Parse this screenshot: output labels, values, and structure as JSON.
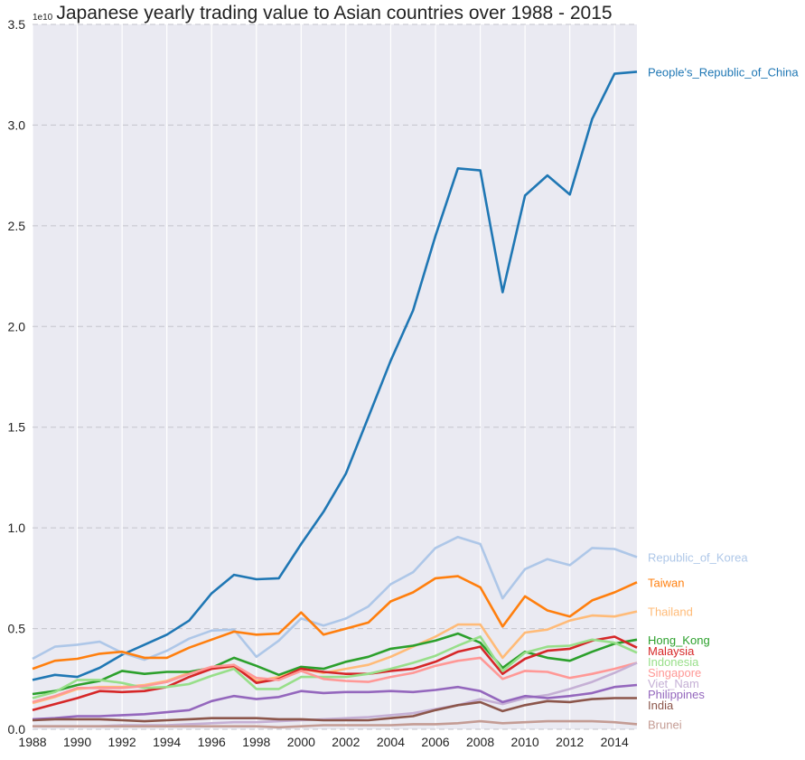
{
  "chart_data": {
    "type": "line",
    "title": "Japanese yearly trading value to Asian countries over 1988 - 2015",
    "xlabel": "",
    "ylabel": "",
    "y_offset_label": "1e10",
    "y_unit": 10000000000.0,
    "xlim": [
      1988,
      2015
    ],
    "ylim": [
      0,
      35000000000.0
    ],
    "x_ticks": [
      1988,
      1990,
      1992,
      1994,
      1996,
      1998,
      2000,
      2002,
      2004,
      2006,
      2008,
      2010,
      2012,
      2014
    ],
    "y_ticks": [
      0.0,
      0.5,
      1.0,
      1.5,
      2.0,
      2.5,
      3.0,
      3.5
    ],
    "y_tick_labels": [
      "0.0",
      "0.5",
      "1.0",
      "1.5",
      "2.0",
      "2.5",
      "3.0",
      "3.5"
    ],
    "grid": {
      "x": true,
      "y": true,
      "y_style": "dashed"
    },
    "legend": "inline-labels-right",
    "background": "#eaeaf2",
    "x": [
      1988,
      1989,
      1990,
      1991,
      1992,
      1993,
      1994,
      1995,
      1996,
      1997,
      1998,
      1999,
      2000,
      2001,
      2002,
      2003,
      2004,
      2005,
      2006,
      2007,
      2008,
      2009,
      2010,
      2011,
      2012,
      2013,
      2014,
      2015
    ],
    "series": [
      {
        "name": "People's_Republic_of_China",
        "color": "#1f77b4",
        "values": [
          2450000000.0,
          2700000000.0,
          2600000000.0,
          3050000000.0,
          3700000000.0,
          4200000000.0,
          4700000000.0,
          5400000000.0,
          6750000000.0,
          7670000000.0,
          7450000000.0,
          7500000000.0,
          9200000000.0,
          10800000000.0,
          12700000000.0,
          15500000000.0,
          18300000000.0,
          20800000000.0,
          24500000000.0,
          27850000000.0,
          27750000000.0,
          21700000000.0,
          26500000000.0,
          27500000000.0,
          26550000000.0,
          30300000000.0,
          32550000000.0,
          32650000000.0
        ]
      },
      {
        "name": "Republic_of_Korea",
        "color": "#aec7e8",
        "values": [
          3500000000.0,
          4100000000.0,
          4200000000.0,
          4350000000.0,
          3800000000.0,
          3450000000.0,
          3900000000.0,
          4500000000.0,
          4900000000.0,
          4950000000.0,
          3600000000.0,
          4400000000.0,
          5500000000.0,
          5150000000.0,
          5500000000.0,
          6100000000.0,
          7200000000.0,
          7800000000.0,
          9000000000.0,
          9550000000.0,
          9200000000.0,
          6500000000.0,
          7950000000.0,
          8450000000.0,
          8150000000.0,
          9000000000.0,
          8950000000.0,
          8550000000.0
        ]
      },
      {
        "name": "Taiwan",
        "color": "#ff7f0e",
        "values": [
          3000000000.0,
          3400000000.0,
          3500000000.0,
          3750000000.0,
          3850000000.0,
          3550000000.0,
          3550000000.0,
          4050000000.0,
          4450000000.0,
          4850000000.0,
          4700000000.0,
          4750000000.0,
          5800000000.0,
          4700000000.0,
          5000000000.0,
          5300000000.0,
          6350000000.0,
          6800000000.0,
          7500000000.0,
          7600000000.0,
          7050000000.0,
          5100000000.0,
          6600000000.0,
          5900000000.0,
          5600000000.0,
          6400000000.0,
          6800000000.0,
          7300000000.0
        ]
      },
      {
        "name": "Thailand",
        "color": "#ffbb78",
        "values": [
          1300000000.0,
          1600000000.0,
          2000000000.0,
          2100000000.0,
          2100000000.0,
          2200000000.0,
          2400000000.0,
          2800000000.0,
          3000000000.0,
          3100000000.0,
          2400000000.0,
          2600000000.0,
          3000000000.0,
          2800000000.0,
          3000000000.0,
          3200000000.0,
          3600000000.0,
          4100000000.0,
          4600000000.0,
          5200000000.0,
          5200000000.0,
          3550000000.0,
          4800000000.0,
          4950000000.0,
          5400000000.0,
          5650000000.0,
          5600000000.0,
          5850000000.0
        ]
      },
      {
        "name": "Hong_Kong",
        "color": "#2ca02c",
        "values": [
          1750000000.0,
          1900000000.0,
          2200000000.0,
          2400000000.0,
          2900000000.0,
          2750000000.0,
          2850000000.0,
          2850000000.0,
          3050000000.0,
          3550000000.0,
          3150000000.0,
          2700000000.0,
          3100000000.0,
          3000000000.0,
          3350000000.0,
          3600000000.0,
          4000000000.0,
          4150000000.0,
          4400000000.0,
          4750000000.0,
          4300000000.0,
          3050000000.0,
          3850000000.0,
          3550000000.0,
          3400000000.0,
          3850000000.0,
          4250000000.0,
          4450000000.0
        ]
      },
      {
        "name": "Malaysia",
        "color": "#d62728",
        "values": [
          950000000.0,
          1250000000.0,
          1550000000.0,
          1900000000.0,
          1850000000.0,
          1900000000.0,
          2100000000.0,
          2600000000.0,
          3000000000.0,
          3150000000.0,
          2300000000.0,
          2500000000.0,
          3000000000.0,
          2850000000.0,
          2750000000.0,
          2750000000.0,
          2900000000.0,
          3000000000.0,
          3350000000.0,
          3850000000.0,
          4100000000.0,
          2750000000.0,
          3500000000.0,
          3900000000.0,
          4000000000.0,
          4400000000.0,
          4600000000.0,
          4050000000.0
        ]
      },
      {
        "name": "Indonesia",
        "color": "#98df8a",
        "values": [
          1550000000.0,
          1850000000.0,
          2450000000.0,
          2450000000.0,
          2300000000.0,
          2050000000.0,
          2100000000.0,
          2250000000.0,
          2650000000.0,
          3000000000.0,
          2000000000.0,
          2000000000.0,
          2600000000.0,
          2600000000.0,
          2600000000.0,
          2750000000.0,
          3000000000.0,
          3300000000.0,
          3650000000.0,
          4150000000.0,
          4600000000.0,
          2900000000.0,
          3800000000.0,
          4100000000.0,
          4150000000.0,
          4450000000.0,
          4300000000.0,
          3800000000.0
        ]
      },
      {
        "name": "Singapore",
        "color": "#ff9896",
        "values": [
          1350000000.0,
          1650000000.0,
          2050000000.0,
          2050000000.0,
          2050000000.0,
          2150000000.0,
          2350000000.0,
          2750000000.0,
          3100000000.0,
          3200000000.0,
          2550000000.0,
          2450000000.0,
          2900000000.0,
          2500000000.0,
          2400000000.0,
          2350000000.0,
          2600000000.0,
          2800000000.0,
          3150000000.0,
          3400000000.0,
          3550000000.0,
          2500000000.0,
          2900000000.0,
          2850000000.0,
          2550000000.0,
          2750000000.0,
          3000000000.0,
          3300000000.0
        ]
      },
      {
        "name": "Viet_Nam",
        "color": "#c5b0d5",
        "values": [
          150000000.0,
          150000000.0,
          150000000.0,
          150000000.0,
          200000000.0,
          200000000.0,
          200000000.0,
          250000000.0,
          300000000.0,
          350000000.0,
          350000000.0,
          400000000.0,
          450000000.0,
          500000000.0,
          550000000.0,
          600000000.0,
          700000000.0,
          800000000.0,
          1000000000.0,
          1200000000.0,
          1500000000.0,
          1250000000.0,
          1550000000.0,
          1700000000.0,
          2000000000.0,
          2350000000.0,
          2800000000.0,
          3300000000.0
        ]
      },
      {
        "name": "Philippines",
        "color": "#9467bd",
        "values": [
          500000000.0,
          550000000.0,
          650000000.0,
          650000000.0,
          700000000.0,
          750000000.0,
          850000000.0,
          950000000.0,
          1400000000.0,
          1650000000.0,
          1500000000.0,
          1600000000.0,
          1900000000.0,
          1800000000.0,
          1850000000.0,
          1850000000.0,
          1900000000.0,
          1850000000.0,
          1950000000.0,
          2100000000.0,
          1900000000.0,
          1350000000.0,
          1650000000.0,
          1550000000.0,
          1650000000.0,
          1800000000.0,
          2100000000.0,
          2200000000.0
        ]
      },
      {
        "name": "India",
        "color": "#8c564b",
        "values": [
          450000000.0,
          500000000.0,
          500000000.0,
          500000000.0,
          450000000.0,
          400000000.0,
          450000000.0,
          500000000.0,
          550000000.0,
          550000000.0,
          550000000.0,
          500000000.0,
          500000000.0,
          450000000.0,
          450000000.0,
          450000000.0,
          550000000.0,
          650000000.0,
          950000000.0,
          1200000000.0,
          1350000000.0,
          900000000.0,
          1200000000.0,
          1400000000.0,
          1350000000.0,
          1500000000.0,
          1550000000.0,
          1550000000.0
        ]
      },
      {
        "name": "Brunei",
        "color": "#c49c94",
        "values": [
          150000000.0,
          150000000.0,
          150000000.0,
          150000000.0,
          150000000.0,
          150000000.0,
          150000000.0,
          150000000.0,
          150000000.0,
          150000000.0,
          150000000.0,
          100000000.0,
          150000000.0,
          200000000.0,
          200000000.0,
          200000000.0,
          200000000.0,
          250000000.0,
          250000000.0,
          300000000.0,
          400000000.0,
          300000000.0,
          350000000.0,
          400000000.0,
          400000000.0,
          400000000.0,
          350000000.0,
          250000000.0
        ]
      }
    ]
  }
}
